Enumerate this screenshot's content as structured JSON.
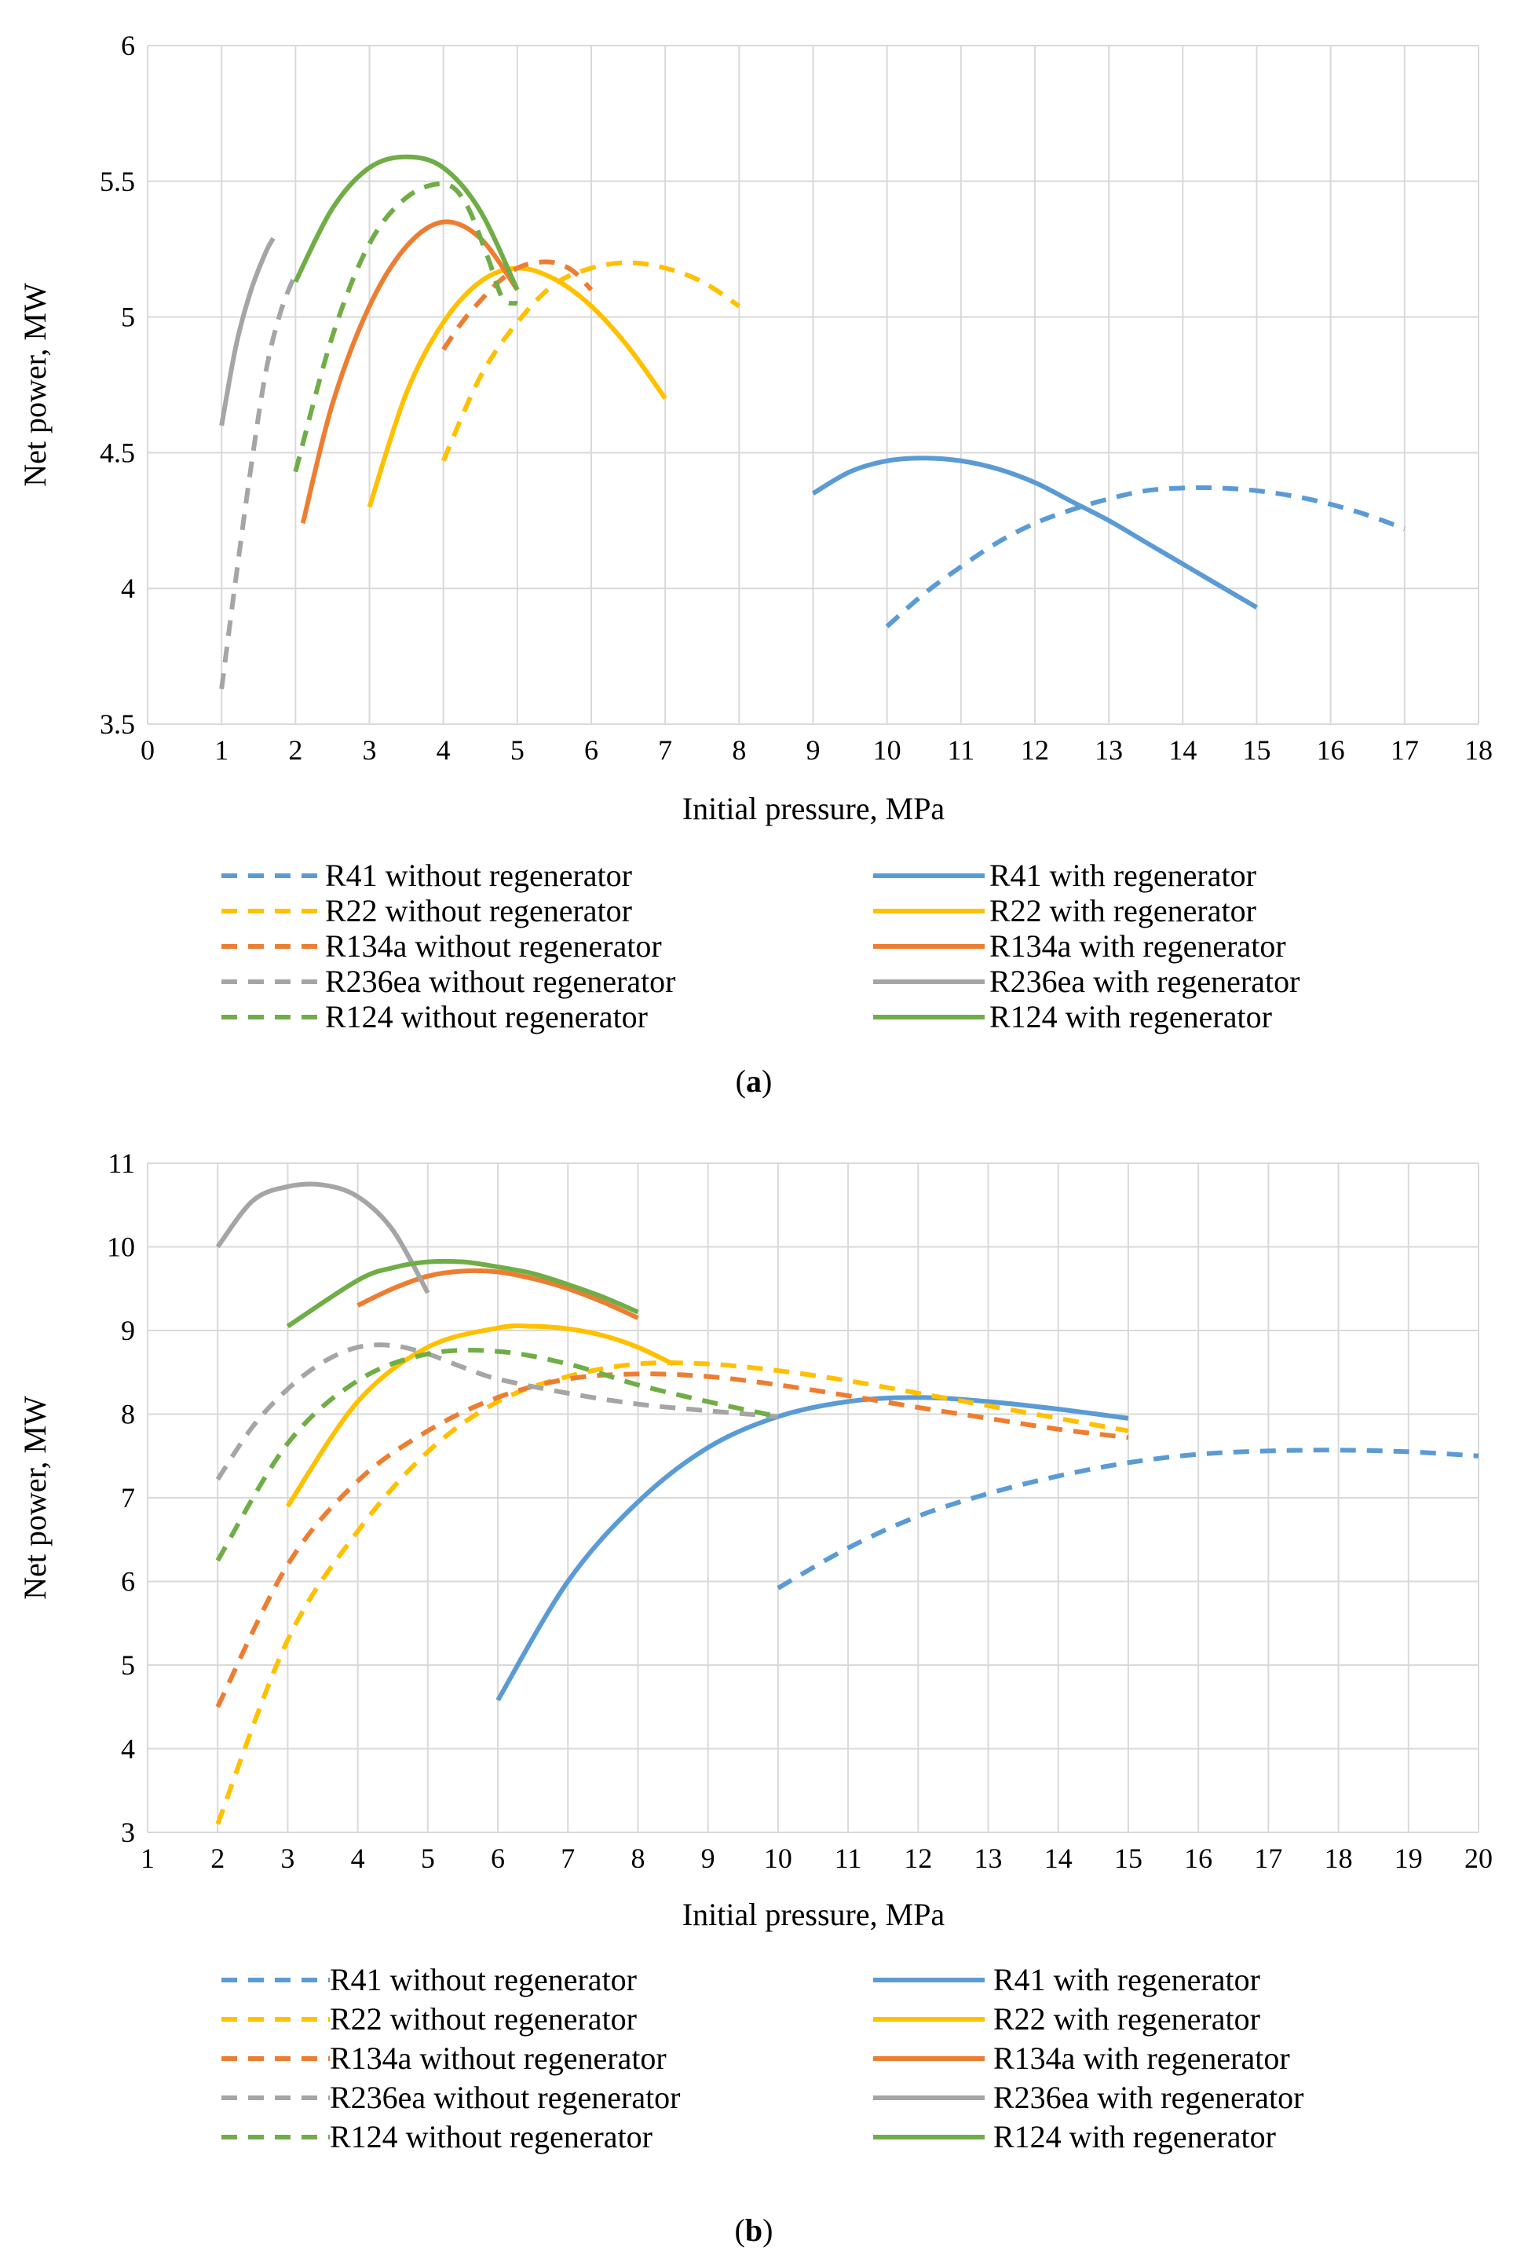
{
  "chart_data": [
    {
      "type": "line",
      "caption": "(a)",
      "caption_letter": "a",
      "xlabel": "Initial pressure, MPa",
      "ylabel": "Net power, MW",
      "xlim": [
        0,
        18
      ],
      "ylim": [
        3.5,
        6
      ],
      "xticks": [
        0,
        1,
        2,
        3,
        4,
        5,
        6,
        7,
        8,
        9,
        10,
        11,
        12,
        13,
        14,
        15,
        16,
        17,
        18
      ],
      "yticks": [
        3.5,
        4,
        4.5,
        5,
        5.5,
        6
      ],
      "ytick_labels": [
        "3.5",
        "4",
        "4.5",
        "5",
        "5.5",
        "6"
      ],
      "grid": true,
      "legend_position": "bottom",
      "series": [
        {
          "name": "R41 without regenerator",
          "color": "#5B9BD5",
          "dash": true,
          "x": [
            10,
            10.5,
            11,
            11.5,
            12,
            12.5,
            13,
            13.5,
            14,
            14.5,
            15,
            15.5,
            16,
            16.5,
            17
          ],
          "y": [
            3.86,
            3.98,
            4.08,
            4.17,
            4.24,
            4.29,
            4.33,
            4.36,
            4.37,
            4.37,
            4.36,
            4.34,
            4.31,
            4.27,
            4.22
          ]
        },
        {
          "name": "R41 with regenerator",
          "color": "#5B9BD5",
          "dash": false,
          "x": [
            9,
            9.5,
            10,
            10.5,
            11,
            11.5,
            12,
            12.5,
            13,
            13.5,
            14,
            14.5,
            15
          ],
          "y": [
            4.35,
            4.43,
            4.47,
            4.48,
            4.47,
            4.44,
            4.39,
            4.32,
            4.25,
            4.17,
            4.09,
            4.01,
            3.93
          ]
        },
        {
          "name": "R22 without regenerator",
          "color": "#FFC000",
          "dash": true,
          "x": [
            4,
            4.5,
            5,
            5.5,
            6,
            6.5,
            7,
            7.5,
            8
          ],
          "y": [
            4.47,
            4.78,
            4.98,
            5.12,
            5.18,
            5.2,
            5.18,
            5.13,
            5.04
          ]
        },
        {
          "name": "R22 with regenerator",
          "color": "#FFC000",
          "dash": false,
          "x": [
            3,
            3.5,
            4,
            4.5,
            5,
            5.5,
            6,
            6.5,
            7
          ],
          "y": [
            4.3,
            4.72,
            4.98,
            5.13,
            5.18,
            5.14,
            5.04,
            4.89,
            4.7
          ]
        },
        {
          "name": "R134a without regenerator",
          "color": "#ED7D31",
          "dash": true,
          "x": [
            4,
            4.25,
            4.5,
            4.75,
            5,
            5.25,
            5.5,
            5.75,
            6
          ],
          "y": [
            4.88,
            4.98,
            5.06,
            5.13,
            5.18,
            5.2,
            5.2,
            5.17,
            5.1
          ]
        },
        {
          "name": "R134a with regenerator",
          "color": "#ED7D31",
          "dash": false,
          "x": [
            2.1,
            2.5,
            3,
            3.5,
            4,
            4.5,
            5
          ],
          "y": [
            4.24,
            4.68,
            5.04,
            5.26,
            5.35,
            5.29,
            5.1
          ]
        },
        {
          "name": "R236ea without regenerator",
          "color": "#A5A5A5",
          "dash": true,
          "x": [
            1,
            1.2,
            1.4,
            1.6,
            1.8,
            2
          ],
          "y": [
            3.63,
            4.05,
            4.45,
            4.8,
            5.02,
            5.16
          ]
        },
        {
          "name": "R236ea with regenerator",
          "color": "#A5A5A5",
          "dash": false,
          "x": [
            1,
            1.2,
            1.4,
            1.6,
            1.7
          ],
          "y": [
            4.6,
            4.9,
            5.1,
            5.24,
            5.29
          ]
        },
        {
          "name": "R124 without regenerator",
          "color": "#70AD47",
          "dash": true,
          "x": [
            2,
            2.5,
            3,
            3.5,
            4,
            4.3,
            4.6,
            4.8,
            5
          ],
          "y": [
            4.43,
            4.93,
            5.27,
            5.44,
            5.49,
            5.42,
            5.22,
            5.07,
            5.05
          ]
        },
        {
          "name": "R124 with regenerator",
          "color": "#70AD47",
          "dash": false,
          "x": [
            2,
            2.5,
            3,
            3.5,
            4,
            4.5,
            5
          ],
          "y": [
            5.13,
            5.4,
            5.55,
            5.59,
            5.55,
            5.39,
            5.1
          ]
        }
      ],
      "legend": [
        "R41 without regenerator",
        "R41 with regenerator",
        "R22 without regenerator",
        "R22 with regenerator",
        "R134a without regenerator",
        "R134a with regenerator",
        "R236ea without regenerator",
        "R236ea with regenerator",
        "R124 without regenerator",
        "R124 with regenerator"
      ]
    },
    {
      "type": "line",
      "caption": "(b)",
      "caption_letter": "b",
      "xlabel": "Initial pressure, MPa",
      "ylabel": "Net power, MW",
      "xlim": [
        1,
        20
      ],
      "ylim": [
        3,
        11
      ],
      "xticks": [
        1,
        2,
        3,
        4,
        5,
        6,
        7,
        8,
        9,
        10,
        11,
        12,
        13,
        14,
        15,
        16,
        17,
        18,
        19,
        20
      ],
      "yticks": [
        3,
        4,
        5,
        6,
        7,
        8,
        9,
        10,
        11
      ],
      "ytick_labels": [
        "3",
        "4",
        "5",
        "6",
        "7",
        "8",
        "9",
        "10",
        "11"
      ],
      "grid": true,
      "legend_position": "bottom",
      "series": [
        {
          "name": "R41 without regenerator",
          "color": "#5B9BD5",
          "dash": true,
          "x": [
            10,
            11,
            12,
            13,
            14,
            15,
            16,
            17,
            18,
            19,
            20
          ],
          "y": [
            5.92,
            6.4,
            6.78,
            7.05,
            7.26,
            7.42,
            7.52,
            7.56,
            7.57,
            7.55,
            7.5
          ]
        },
        {
          "name": "R41 with regenerator",
          "color": "#5B9BD5",
          "dash": false,
          "x": [
            6,
            7,
            8,
            9,
            10,
            11,
            12,
            13,
            14,
            15
          ],
          "y": [
            4.58,
            6.0,
            6.95,
            7.6,
            7.97,
            8.15,
            8.2,
            8.15,
            8.06,
            7.95
          ]
        },
        {
          "name": "R22 without regenerator",
          "color": "#FFC000",
          "dash": true,
          "x": [
            2,
            3,
            4,
            5,
            6,
            7,
            8,
            9,
            10,
            11,
            12,
            13,
            14,
            15
          ],
          "y": [
            3.1,
            5.3,
            6.6,
            7.55,
            8.15,
            8.45,
            8.6,
            8.6,
            8.52,
            8.4,
            8.25,
            8.1,
            7.95,
            7.8
          ]
        },
        {
          "name": "R22 with regenerator",
          "color": "#FFC000",
          "dash": false,
          "x": [
            3,
            4,
            5,
            6,
            6.5,
            7,
            7.5,
            8,
            8.5
          ],
          "y": [
            6.9,
            8.15,
            8.8,
            9.03,
            9.05,
            9.02,
            8.94,
            8.8,
            8.6
          ]
        },
        {
          "name": "R134a without regenerator",
          "color": "#ED7D31",
          "dash": true,
          "x": [
            2,
            3,
            4,
            5,
            6,
            7,
            8,
            9,
            10,
            11,
            12,
            13,
            14,
            15
          ],
          "y": [
            4.5,
            6.2,
            7.2,
            7.8,
            8.2,
            8.42,
            8.48,
            8.45,
            8.35,
            8.22,
            8.08,
            7.95,
            7.82,
            7.72
          ]
        },
        {
          "name": "R134a with regenerator",
          "color": "#ED7D31",
          "dash": false,
          "x": [
            4,
            4.5,
            5,
            5.5,
            6,
            6.5,
            7,
            7.5,
            8
          ],
          "y": [
            9.3,
            9.5,
            9.65,
            9.71,
            9.7,
            9.62,
            9.5,
            9.34,
            9.15
          ]
        },
        {
          "name": "R236ea without regenerator",
          "color": "#A5A5A5",
          "dash": true,
          "x": [
            2,
            2.5,
            3,
            3.5,
            4,
            4.5,
            5,
            5.5,
            6,
            7,
            8,
            9,
            10
          ],
          "y": [
            7.22,
            7.85,
            8.3,
            8.62,
            8.8,
            8.82,
            8.72,
            8.56,
            8.42,
            8.25,
            8.12,
            8.04,
            7.97
          ]
        },
        {
          "name": "R236ea with regenerator",
          "color": "#A5A5A5",
          "dash": false,
          "x": [
            2,
            2.5,
            3,
            3.5,
            4,
            4.5,
            5
          ],
          "y": [
            10.0,
            10.55,
            10.72,
            10.74,
            10.6,
            10.2,
            9.45
          ]
        },
        {
          "name": "R124 without regenerator",
          "color": "#70AD47",
          "dash": true,
          "x": [
            2,
            3,
            4,
            5,
            6,
            7,
            8,
            9,
            10
          ],
          "y": [
            6.25,
            7.65,
            8.4,
            8.72,
            8.75,
            8.6,
            8.35,
            8.15,
            7.97
          ]
        },
        {
          "name": "R124 with regenerator",
          "color": "#70AD47",
          "dash": false,
          "x": [
            3,
            4,
            4.5,
            5,
            5.5,
            6,
            6.5,
            7,
            7.5,
            8
          ],
          "y": [
            9.05,
            9.6,
            9.75,
            9.82,
            9.82,
            9.76,
            9.68,
            9.55,
            9.4,
            9.22
          ]
        }
      ],
      "legend": [
        "R41 without regenerator",
        "R41 with regenerator",
        "R22 without regenerator",
        "R22 with regenerator",
        "R134a without regenerator",
        "R134a with regenerator",
        "R236ea without regenerator",
        "R236ea with regenerator",
        "R124 without regenerator",
        "R124 with regenerator"
      ]
    }
  ]
}
